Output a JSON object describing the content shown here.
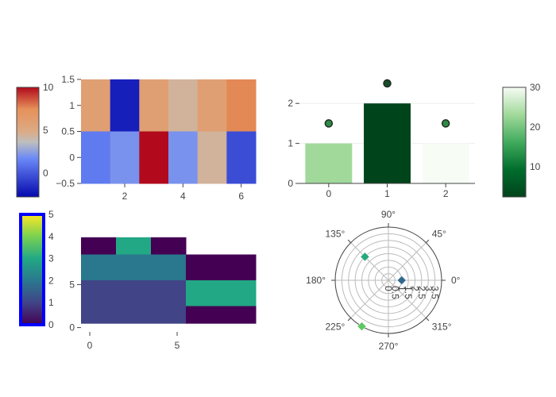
{
  "chart_data": [
    {
      "type": "heatmap",
      "x": [
        1,
        2,
        3,
        4,
        5,
        6
      ],
      "y": [
        1,
        0
      ],
      "xlim": [
        0.5,
        6.5
      ],
      "ylim": [
        -0.5,
        1.5
      ],
      "x_ticks": [
        "2",
        "4",
        "6"
      ],
      "y_ticks": [
        "1.5",
        "1",
        "0.5",
        "0",
        "−0.5"
      ],
      "z": [
        [
          5,
          -5,
          5,
          3,
          5,
          7
        ],
        [
          -1,
          0,
          10,
          0,
          3,
          -3
        ]
      ],
      "colorbar": {
        "colorscale": "RdBu",
        "range": [
          -6,
          10
        ],
        "ticks": [
          "10",
          "5",
          "0"
        ]
      }
    },
    {
      "type": "bar",
      "categories": [
        "0",
        "1",
        "2"
      ],
      "values": [
        1,
        2,
        1
      ],
      "markers": [
        1.5,
        2.5,
        1.5
      ],
      "ylim": [
        0,
        2.6
      ],
      "y_ticks": [
        "2",
        "1",
        "0"
      ],
      "colorbar": {
        "colorscale": "Greens",
        "range": [
          2,
          30
        ],
        "ticks": [
          "30",
          "20",
          "10"
        ]
      }
    },
    {
      "type": "heatmap",
      "x_ticks": [
        "0",
        "5"
      ],
      "y_ticks": [
        "5",
        "0"
      ],
      "xlim": [
        -0.5,
        9.5
      ],
      "ylim": [
        -0.5,
        11.5
      ],
      "cells": [
        {
          "x0": 0,
          "x1": 4,
          "y0": 9,
          "y1": 11,
          "z": 0
        },
        {
          "x0": 4,
          "x1": 8,
          "y0": 9,
          "y1": 11,
          "z": 3
        },
        {
          "x0": 8,
          "x1": 12,
          "y0": 9,
          "y1": 11,
          "z": 0
        },
        {
          "x0": 0,
          "x1": 12,
          "y0": 6,
          "y1": 9,
          "z": 2
        },
        {
          "x0": 12,
          "x1": 20,
          "y0": 6,
          "y1": 9,
          "z": 0
        },
        {
          "x0": 0,
          "x1": 12,
          "y0": 3,
          "y1": 6,
          "z": 1
        },
        {
          "x0": 12,
          "x1": 20,
          "y0": 3,
          "y1": 6,
          "z": 3
        },
        {
          "x0": 0,
          "x1": 12,
          "y0": 1,
          "y1": 3,
          "z": 1
        },
        {
          "x0": 12,
          "x1": 20,
          "y0": 1,
          "y1": 3,
          "z": 0
        }
      ],
      "colorbar": {
        "colorscale": "Viridis",
        "range": [
          0,
          5
        ],
        "ticks": [
          "5",
          "4",
          "3",
          "2",
          "1",
          "0"
        ],
        "outline_color": "#0000ff"
      }
    },
    {
      "type": "scatter",
      "subtype": "polar",
      "r_ticks": [
        "0",
        "0.5",
        "1",
        "1.5",
        "2",
        "2.5",
        "3",
        "3.5"
      ],
      "r_range": [
        0,
        4
      ],
      "angle_ticks": [
        "0°",
        "45°",
        "90°",
        "135°",
        "180°",
        "225°",
        "270°",
        "315°"
      ],
      "points": [
        {
          "r": 1,
          "theta": 0,
          "color": "#31688e"
        },
        {
          "r": 2.5,
          "theta": 135,
          "color": "#25a97b"
        },
        {
          "r": 4,
          "theta": 240,
          "color": "#5ec962"
        }
      ],
      "marker": "diamond"
    }
  ]
}
